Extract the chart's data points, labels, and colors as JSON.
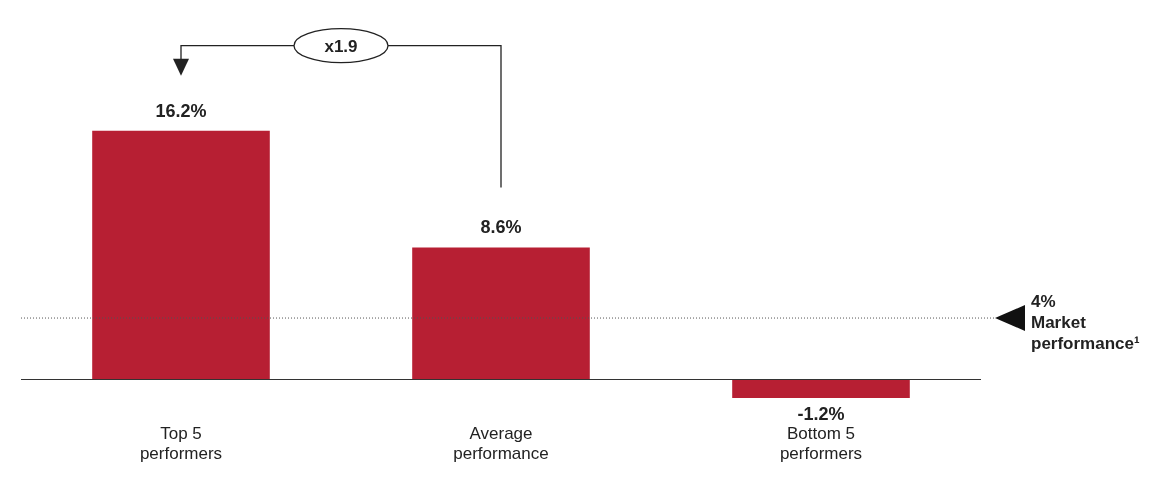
{
  "chart_data": {
    "type": "bar",
    "categories": [
      "Top 5\nperformers",
      "Average\nperformance",
      "Bottom 5\nperformers"
    ],
    "values": [
      16.2,
      8.6,
      -1.2
    ],
    "color": "#b71f33",
    "data_labels": true,
    "value_labels": [
      "16.2%",
      "8.6%",
      "-1.2%"
    ],
    "grid": false,
    "legend": false,
    "ref_lines": [
      {
        "axis": "y",
        "value": 4,
        "label": "4%\nMarket\nperformance¹",
        "line_style": "dotted",
        "color": "#555555"
      }
    ],
    "annotations": [
      "x1.9"
    ]
  }
}
